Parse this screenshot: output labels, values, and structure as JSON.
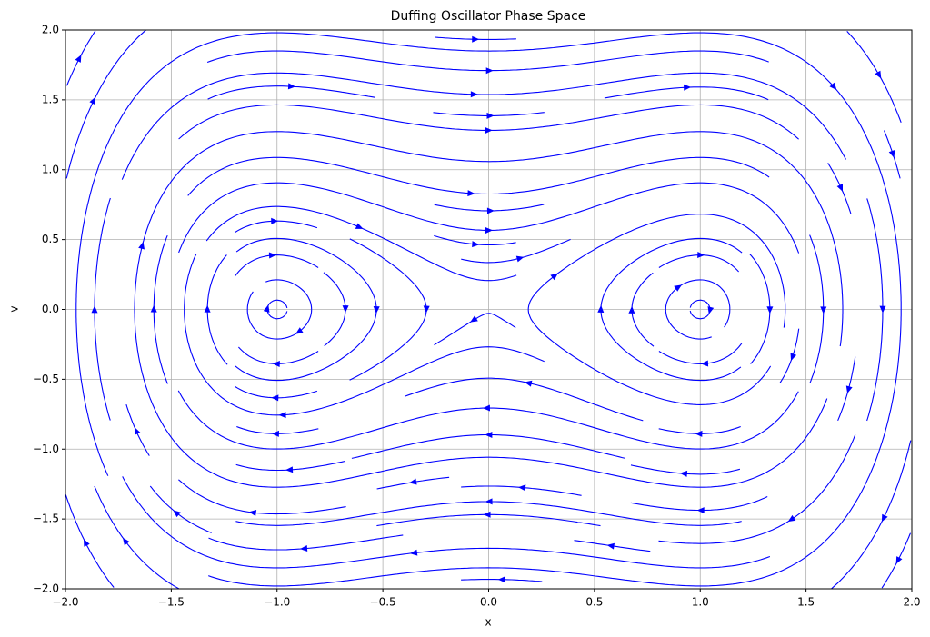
{
  "chart_data": {
    "type": "streamplot",
    "title": "Duffing Oscillator Phase Space",
    "x_label": "x",
    "y_label": "v",
    "xlim": [
      -2,
      2
    ],
    "ylim": [
      -2,
      2
    ],
    "xticks": [
      {
        "value": -2,
        "label": "−2.0"
      },
      {
        "value": -1.5,
        "label": "−1.5"
      },
      {
        "value": -1,
        "label": "−1.0"
      },
      {
        "value": -0.5,
        "label": "−0.5"
      },
      {
        "value": 0,
        "label": "0.0"
      },
      0.5,
      {
        "value": 1,
        "label": "1.0"
      },
      1.5,
      {
        "value": 2,
        "label": "2.0"
      }
    ],
    "yticks": [
      {
        "value": -2,
        "label": "−2.0"
      },
      {
        "value": -1.5,
        "label": "−1.5"
      },
      {
        "value": -1,
        "label": "−1.0"
      },
      {
        "value": -0.5,
        "label": "−0.5"
      },
      {
        "value": 0,
        "label": "0.0"
      },
      0.5,
      {
        "value": 1,
        "label": "1.0"
      },
      1.5,
      {
        "value": 2,
        "label": "2.0"
      }
    ],
    "color": "#0000ff",
    "grid": true
  }
}
